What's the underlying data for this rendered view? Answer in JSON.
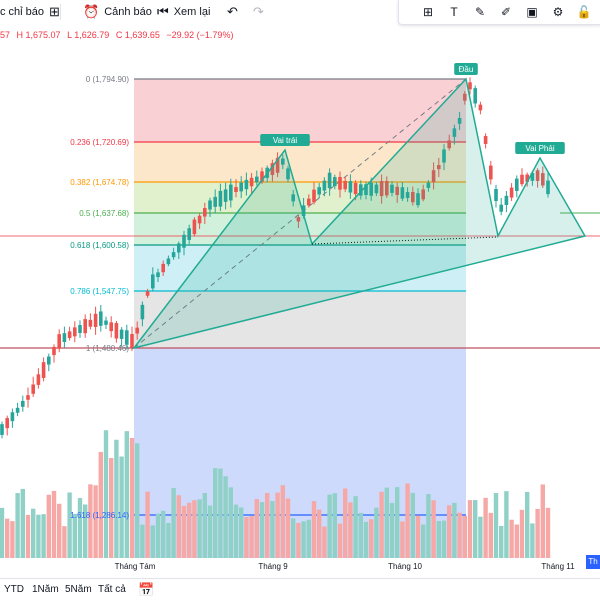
{
  "toolbar": {
    "indicators_label": "c chỉ báo",
    "alert_label": "Cảnh báo",
    "replay_label": "Xem lại"
  },
  "ohlc": {
    "o_tail": "57",
    "h": "H 1,675.07",
    "l": "L 1,626.79",
    "c": "C 1,639.65",
    "change": "−29.92 (−1.79%)"
  },
  "fib": {
    "levels": [
      {
        "label": "0 (1,794.90)",
        "color": "#787b86"
      },
      {
        "label": "0.236 (1,720.69)",
        "color": "#f23645"
      },
      {
        "label": "0.382 (1,674.78)",
        "color": "#ff9800"
      },
      {
        "label": "0.5 (1,637.68)",
        "color": "#4caf50"
      },
      {
        "label": "0.618 (1,600.58)",
        "color": "#089981"
      },
      {
        "label": "0.786 (1,547.75)",
        "color": "#00bcd4"
      },
      {
        "label": "1 (1,480.46)",
        "color": "#787b86"
      },
      {
        "label": "1.618 (1,286.14)",
        "color": "#2962ff"
      }
    ]
  },
  "pattern": {
    "left_shoulder": "Vai trái",
    "head": "Đầu",
    "right_shoulder": "Vai Phải"
  },
  "axis": {
    "months": [
      "Tháng Tám",
      "Tháng 9",
      "Tháng 10",
      "Tháng 11"
    ],
    "price_tag": "Th"
  },
  "bottombar": {
    "ranges": [
      "YTD",
      "1Năm",
      "5Năm",
      "Tất cả"
    ]
  },
  "colors": {
    "up": "#26a69a",
    "down": "#ef5350",
    "pattern_line": "#22ab94",
    "label_bg": "#22ab94"
  },
  "icons": {
    "toolbar": [
      "grid-icon",
      "alarm-plus-icon",
      "replay-icon",
      "undo-icon",
      "redo-icon"
    ],
    "drawbar": [
      "layout-icon",
      "text-icon",
      "brush-icon",
      "highlighter-icon",
      "image-plus-icon",
      "settings-icon",
      "lock-icon"
    ]
  }
}
